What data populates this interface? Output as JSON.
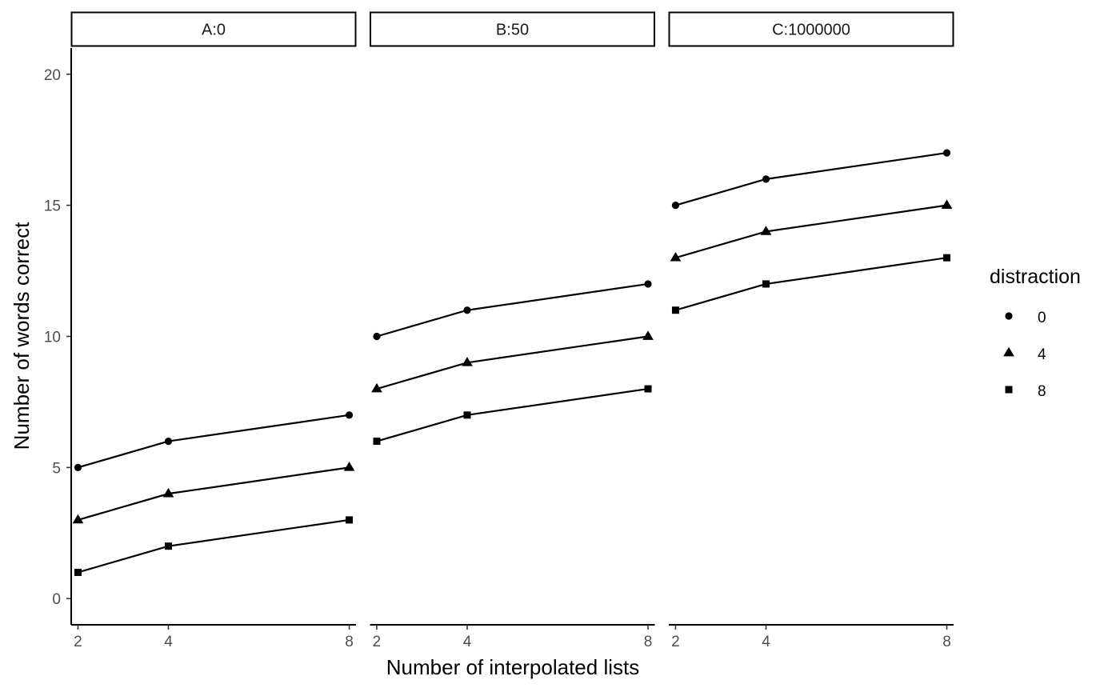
{
  "chart_data": {
    "type": "line",
    "facet_variable_labels": [
      "A:0",
      "B:50",
      "C:1000000"
    ],
    "xlabel": "Number of interpolated lists",
    "ylabel": "Number of words correct",
    "x_ticks": [
      2,
      4,
      8
    ],
    "y_ticks": [
      0,
      5,
      10,
      15,
      20
    ],
    "xlim": [
      1.85,
      8.15
    ],
    "ylim": [
      -1,
      21
    ],
    "grid": false,
    "legend": {
      "title": "distraction",
      "position": "right",
      "entries": [
        {
          "label": "0",
          "shape": "circle"
        },
        {
          "label": "4",
          "shape": "triangle"
        },
        {
          "label": "8",
          "shape": "square"
        }
      ]
    },
    "facets": [
      {
        "label": "A:0",
        "series": [
          {
            "distraction": "0",
            "x": [
              2,
              4,
              8
            ],
            "y": [
              5,
              6,
              7
            ]
          },
          {
            "distraction": "4",
            "x": [
              2,
              4,
              8
            ],
            "y": [
              3,
              4,
              5
            ]
          },
          {
            "distraction": "8",
            "x": [
              2,
              4,
              8
            ],
            "y": [
              1,
              2,
              3
            ]
          }
        ]
      },
      {
        "label": "B:50",
        "series": [
          {
            "distraction": "0",
            "x": [
              2,
              4,
              8
            ],
            "y": [
              10,
              11,
              12
            ]
          },
          {
            "distraction": "4",
            "x": [
              2,
              4,
              8
            ],
            "y": [
              8,
              9,
              10
            ]
          },
          {
            "distraction": "8",
            "x": [
              2,
              4,
              8
            ],
            "y": [
              6,
              7,
              8
            ]
          }
        ]
      },
      {
        "label": "C:1000000",
        "series": [
          {
            "distraction": "0",
            "x": [
              2,
              4,
              8
            ],
            "y": [
              15,
              16,
              17
            ]
          },
          {
            "distraction": "4",
            "x": [
              2,
              4,
              8
            ],
            "y": [
              13,
              14,
              15
            ]
          },
          {
            "distraction": "8",
            "x": [
              2,
              4,
              8
            ],
            "y": [
              11,
              12,
              13
            ]
          }
        ]
      }
    ],
    "colors": {
      "line": "#000000",
      "strip_fill": "#ffffff",
      "strip_border": "#000000",
      "tick_text": "#4d4d4d"
    }
  }
}
